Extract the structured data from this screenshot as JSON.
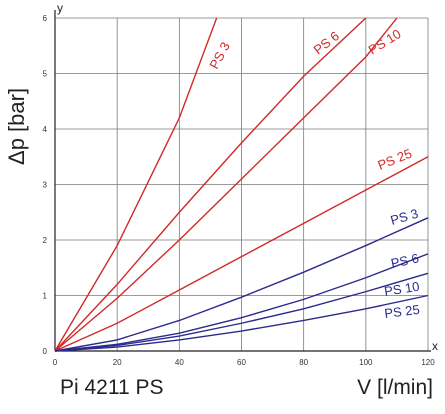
{
  "chart_data": {
    "type": "line",
    "title": "Pi 4211 PS",
    "xlabel": "V [l/min]",
    "ylabel": "Δp [bar]",
    "x_axis_letter": "x",
    "y_axis_letter": "y",
    "xlim": [
      0,
      120
    ],
    "ylim": [
      0,
      6
    ],
    "x_ticks": [
      0,
      20,
      40,
      60,
      80,
      100,
      120
    ],
    "y_ticks": [
      0,
      1,
      2,
      3,
      4,
      5,
      6
    ],
    "grid": true,
    "legend": "none",
    "series": [
      {
        "name": "PS 3",
        "color": "#d12a2a",
        "x": [
          0,
          20,
          40,
          52
        ],
        "y": [
          0,
          1.9,
          4.2,
          6.0
        ]
      },
      {
        "name": "PS 6",
        "color": "#d12a2a",
        "x": [
          0,
          20,
          40,
          60,
          80,
          100
        ],
        "y": [
          0,
          1.2,
          2.5,
          3.75,
          4.95,
          6.0
        ]
      },
      {
        "name": "PS 10",
        "color": "#d12a2a",
        "x": [
          0,
          20,
          40,
          60,
          80,
          100,
          110
        ],
        "y": [
          0,
          0.95,
          2.0,
          3.1,
          4.2,
          5.3,
          6.0
        ]
      },
      {
        "name": "PS 25",
        "color": "#d12a2a",
        "x": [
          0,
          20,
          40,
          60,
          80,
          100,
          120
        ],
        "y": [
          0,
          0.5,
          1.1,
          1.7,
          2.3,
          2.9,
          3.5
        ]
      },
      {
        "name": "PS 3",
        "color": "#2b2b8f",
        "x": [
          0,
          20,
          40,
          60,
          80,
          100,
          120
        ],
        "y": [
          0,
          0.2,
          0.55,
          0.97,
          1.42,
          1.9,
          2.4
        ]
      },
      {
        "name": "PS 6",
        "color": "#2b2b8f",
        "x": [
          0,
          20,
          40,
          60,
          80,
          100,
          120
        ],
        "y": [
          0,
          0.12,
          0.32,
          0.6,
          0.93,
          1.32,
          1.75
        ]
      },
      {
        "name": "PS 10",
        "color": "#2b2b8f",
        "x": [
          0,
          20,
          40,
          60,
          80,
          100,
          120
        ],
        "y": [
          0,
          0.1,
          0.27,
          0.5,
          0.76,
          1.07,
          1.4
        ]
      },
      {
        "name": "PS 25",
        "color": "#2b2b8f",
        "x": [
          0,
          20,
          40,
          60,
          80,
          100,
          120
        ],
        "y": [
          0,
          0.07,
          0.2,
          0.36,
          0.55,
          0.76,
          1.0
        ]
      }
    ],
    "series_label_text": {
      "red": [
        "PS 3",
        "PS 6",
        "PS 10",
        "PS 25"
      ],
      "blue": [
        "PS 3",
        "PS 6",
        "PS 10",
        "PS 25"
      ]
    }
  }
}
